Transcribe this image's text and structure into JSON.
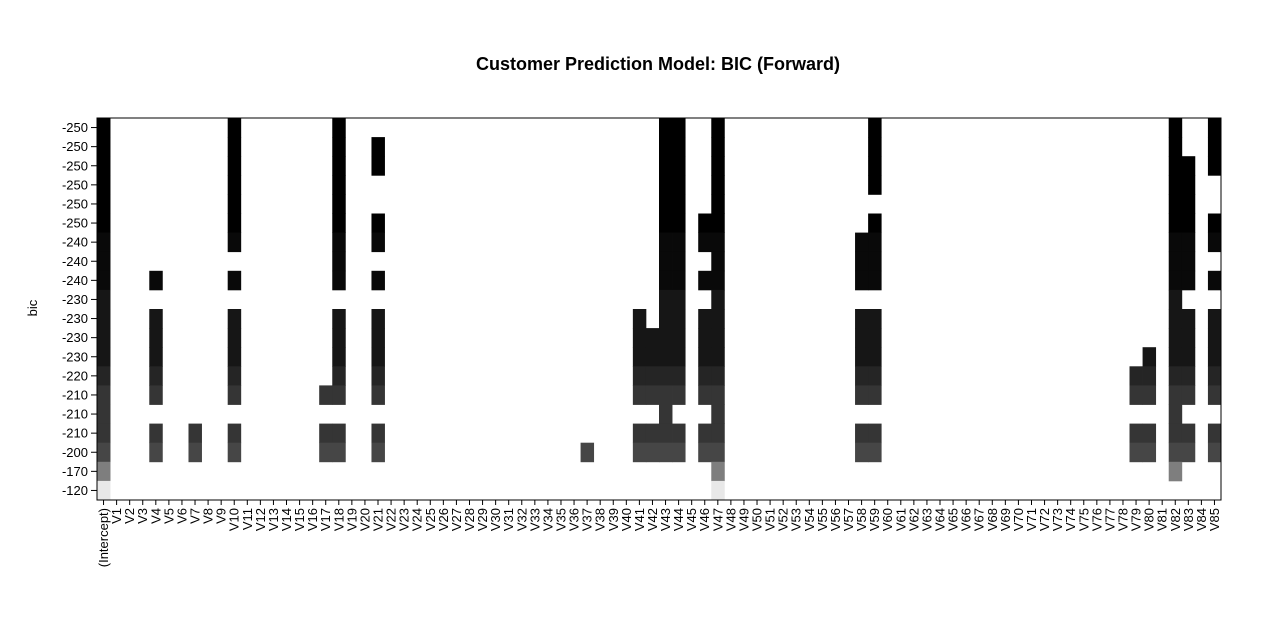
{
  "chart_data": {
    "type": "heatmap",
    "title": "Customer Prediction Model: BIC (Forward)",
    "ylabel": "bic",
    "xlabel": "",
    "variables": [
      "(Intercept)",
      "V1",
      "V2",
      "V3",
      "V4",
      "V5",
      "V6",
      "V7",
      "V8",
      "V9",
      "V10",
      "V11",
      "V12",
      "V13",
      "V14",
      "V15",
      "V16",
      "V17",
      "V18",
      "V19",
      "V20",
      "V21",
      "V22",
      "V23",
      "V24",
      "V25",
      "V26",
      "V27",
      "V28",
      "V29",
      "V30",
      "V31",
      "V32",
      "V33",
      "V34",
      "V35",
      "V36",
      "V37",
      "V38",
      "V39",
      "V40",
      "V41",
      "V42",
      "V43",
      "V44",
      "V45",
      "V46",
      "V47",
      "V48",
      "V49",
      "V50",
      "V51",
      "V52",
      "V53",
      "V54",
      "V55",
      "V56",
      "V57",
      "V58",
      "V59",
      "V60",
      "V61",
      "V62",
      "V63",
      "V64",
      "V65",
      "V66",
      "V67",
      "V68",
      "V69",
      "V70",
      "V71",
      "V72",
      "V73",
      "V74",
      "V75",
      "V76",
      "V77",
      "V78",
      "V79",
      "V80",
      "V81",
      "V82",
      "V83",
      "V84",
      "V85"
    ],
    "rows_top_to_bottom": [
      {
        "bic": -250,
        "included": [
          "(Intercept)",
          "V10",
          "V18",
          "V43",
          "V44",
          "V47",
          "V59",
          "V82",
          "V85"
        ]
      },
      {
        "bic": -250,
        "included": [
          "(Intercept)",
          "V10",
          "V18",
          "V21",
          "V43",
          "V44",
          "V47",
          "V59",
          "V82",
          "V85"
        ]
      },
      {
        "bic": -250,
        "included": [
          "(Intercept)",
          "V10",
          "V18",
          "V21",
          "V43",
          "V44",
          "V47",
          "V59",
          "V82",
          "V83",
          "V85"
        ]
      },
      {
        "bic": -250,
        "included": [
          "(Intercept)",
          "V10",
          "V18",
          "V43",
          "V44",
          "V47",
          "V59",
          "V82",
          "V83"
        ]
      },
      {
        "bic": -250,
        "included": [
          "(Intercept)",
          "V10",
          "V18",
          "V43",
          "V44",
          "V47",
          "V82",
          "V83"
        ]
      },
      {
        "bic": -250,
        "included": [
          "(Intercept)",
          "V10",
          "V18",
          "V21",
          "V43",
          "V44",
          "V46",
          "V47",
          "V59",
          "V82",
          "V83",
          "V85"
        ]
      },
      {
        "bic": -240,
        "included": [
          "(Intercept)",
          "V10",
          "V18",
          "V21",
          "V43",
          "V44",
          "V46",
          "V47",
          "V58",
          "V59",
          "V82",
          "V83",
          "V85"
        ]
      },
      {
        "bic": -240,
        "included": [
          "(Intercept)",
          "V18",
          "V43",
          "V44",
          "V47",
          "V58",
          "V59",
          "V82",
          "V83"
        ]
      },
      {
        "bic": -240,
        "included": [
          "(Intercept)",
          "V4",
          "V10",
          "V18",
          "V21",
          "V43",
          "V44",
          "V46",
          "V47",
          "V58",
          "V59",
          "V82",
          "V83",
          "V85"
        ]
      },
      {
        "bic": -230,
        "included": [
          "(Intercept)",
          "V43",
          "V44",
          "V47",
          "V82"
        ]
      },
      {
        "bic": -230,
        "included": [
          "(Intercept)",
          "V4",
          "V10",
          "V18",
          "V21",
          "V41",
          "V43",
          "V44",
          "V46",
          "V47",
          "V58",
          "V59",
          "V82",
          "V83",
          "V85"
        ]
      },
      {
        "bic": -230,
        "included": [
          "(Intercept)",
          "V4",
          "V10",
          "V18",
          "V21",
          "V41",
          "V42",
          "V43",
          "V44",
          "V46",
          "V47",
          "V58",
          "V59",
          "V82",
          "V83",
          "V85"
        ]
      },
      {
        "bic": -230,
        "included": [
          "(Intercept)",
          "V4",
          "V10",
          "V18",
          "V21",
          "V41",
          "V42",
          "V43",
          "V44",
          "V46",
          "V47",
          "V58",
          "V59",
          "V80",
          "V82",
          "V83",
          "V85"
        ]
      },
      {
        "bic": -220,
        "included": [
          "(Intercept)",
          "V4",
          "V10",
          "V18",
          "V21",
          "V41",
          "V42",
          "V43",
          "V44",
          "V46",
          "V47",
          "V58",
          "V59",
          "V79",
          "V80",
          "V82",
          "V83",
          "V85"
        ]
      },
      {
        "bic": -210,
        "included": [
          "(Intercept)",
          "V4",
          "V10",
          "V17",
          "V18",
          "V21",
          "V41",
          "V42",
          "V43",
          "V44",
          "V46",
          "V47",
          "V58",
          "V59",
          "V79",
          "V80",
          "V82",
          "V83",
          "V85"
        ]
      },
      {
        "bic": -210,
        "included": [
          "(Intercept)",
          "V43",
          "V47",
          "V82"
        ]
      },
      {
        "bic": -210,
        "included": [
          "(Intercept)",
          "V4",
          "V7",
          "V10",
          "V17",
          "V18",
          "V21",
          "V41",
          "V42",
          "V43",
          "V44",
          "V46",
          "V47",
          "V58",
          "V59",
          "V79",
          "V80",
          "V82",
          "V83",
          "V85"
        ]
      },
      {
        "bic": -200,
        "included": [
          "(Intercept)",
          "V4",
          "V7",
          "V10",
          "V17",
          "V18",
          "V21",
          "V37",
          "V41",
          "V42",
          "V43",
          "V44",
          "V46",
          "V47",
          "V58",
          "V59",
          "V79",
          "V80",
          "V82",
          "V83",
          "V85"
        ]
      },
      {
        "bic": -170,
        "included": [
          "(Intercept)",
          "V47",
          "V82"
        ]
      },
      {
        "bic": -120,
        "included": [
          "(Intercept)",
          "V47"
        ]
      }
    ],
    "legend": "none",
    "grid": false
  }
}
